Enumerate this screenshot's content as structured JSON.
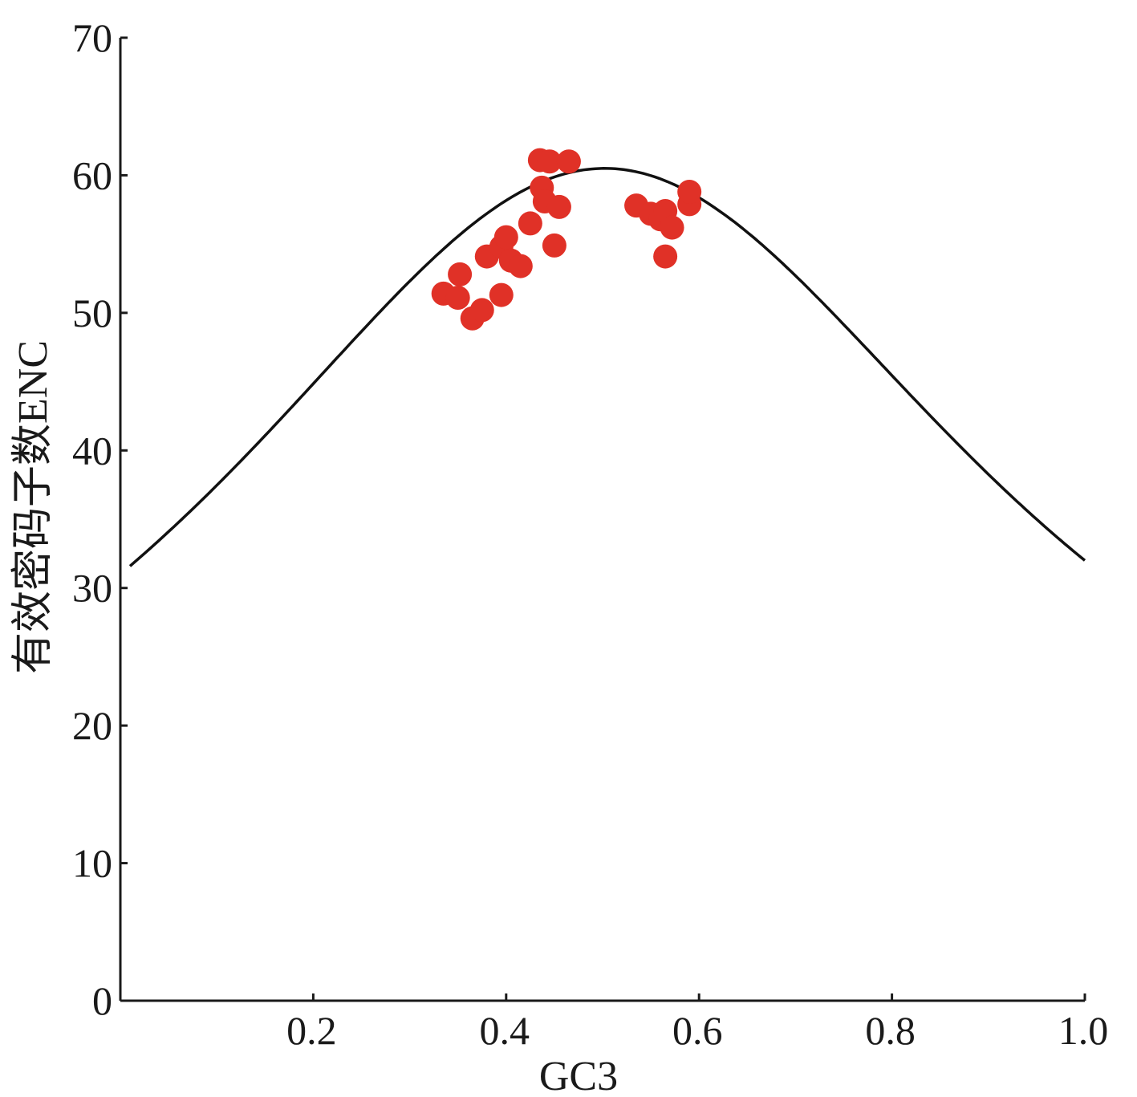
{
  "chart_data": {
    "type": "scatter",
    "title": "",
    "xlabel": "GC3",
    "ylabel": "有效密码子数ENC",
    "xlim": [
      0,
      1.0
    ],
    "ylim": [
      0,
      70
    ],
    "x_ticks": [
      0.2,
      0.4,
      0.6,
      0.8,
      1.0
    ],
    "x_tick_labels": [
      "0.2",
      "0.4",
      "0.6",
      "0.8",
      "1.0"
    ],
    "y_ticks": [
      0,
      10,
      20,
      30,
      40,
      50,
      60,
      70
    ],
    "y_tick_labels": [
      "0",
      "10",
      "20",
      "30",
      "40",
      "50",
      "60",
      "70"
    ],
    "grid": false,
    "legend": "none",
    "expected_curve": {
      "formula": "ENC = 2 + GC3 + 29 / (GC3^2 + (1 - GC3)^2)",
      "x_range": [
        0.01,
        1.0
      ],
      "color": "#111111"
    },
    "points": [
      {
        "x": 0.335,
        "y": 51.4
      },
      {
        "x": 0.35,
        "y": 51.1
      },
      {
        "x": 0.352,
        "y": 52.8
      },
      {
        "x": 0.365,
        "y": 49.6
      },
      {
        "x": 0.375,
        "y": 50.2
      },
      {
        "x": 0.38,
        "y": 54.1
      },
      {
        "x": 0.395,
        "y": 51.3
      },
      {
        "x": 0.395,
        "y": 54.8
      },
      {
        "x": 0.4,
        "y": 55.5
      },
      {
        "x": 0.405,
        "y": 53.8
      },
      {
        "x": 0.415,
        "y": 53.4
      },
      {
        "x": 0.425,
        "y": 56.5
      },
      {
        "x": 0.435,
        "y": 61.1
      },
      {
        "x": 0.445,
        "y": 61.0
      },
      {
        "x": 0.437,
        "y": 59.1
      },
      {
        "x": 0.44,
        "y": 58.1
      },
      {
        "x": 0.45,
        "y": 54.9
      },
      {
        "x": 0.455,
        "y": 57.7
      },
      {
        "x": 0.465,
        "y": 61.0
      },
      {
        "x": 0.535,
        "y": 57.8
      },
      {
        "x": 0.55,
        "y": 57.2
      },
      {
        "x": 0.56,
        "y": 56.8
      },
      {
        "x": 0.565,
        "y": 57.4
      },
      {
        "x": 0.572,
        "y": 56.2
      },
      {
        "x": 0.565,
        "y": 54.1
      },
      {
        "x": 0.59,
        "y": 57.9
      },
      {
        "x": 0.59,
        "y": 58.8
      }
    ],
    "point_color": "#e03127"
  }
}
